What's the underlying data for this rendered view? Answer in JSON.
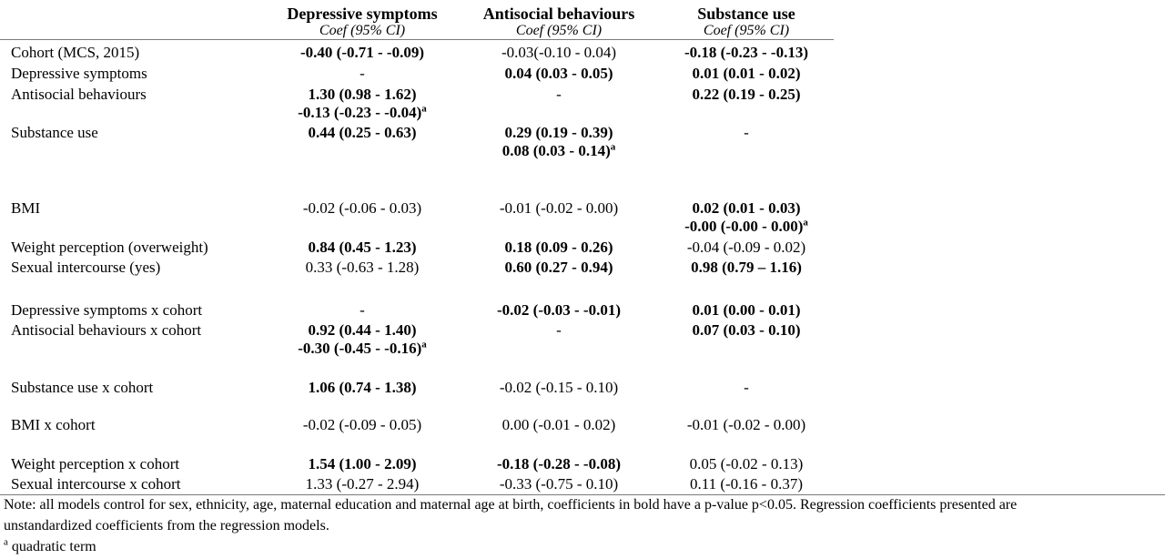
{
  "columns": [
    {
      "title": "Depressive symptoms",
      "subtitle": "Coef (95% CI)"
    },
    {
      "title": "Antisocial behaviours",
      "subtitle": "Coef (95% CI)"
    },
    {
      "title": "Substance use",
      "subtitle": "Coef (95% CI)"
    }
  ],
  "rows": [
    {
      "label": "Cohort (MCS, 2015)",
      "c1": "-0.40 (-0.71 - -0.09)",
      "c2": "-0.03(-0.10 - 0.04)",
      "c3": "-0.18 (-0.23 - -0.13)"
    },
    {
      "label": "Depressive symptoms",
      "c1": "-",
      "c2": "0.04 (0.03 - 0.05)",
      "c3": "0.01 (0.01 - 0.02)"
    },
    {
      "label": "Antisocial behaviours",
      "c1": "1.30 (0.98 - 1.62)",
      "c1_q": "-0.13 (-0.23 - -0.04)",
      "c2": "-",
      "c3": "0.22 (0.19 - 0.25)"
    },
    {
      "label": "Substance use",
      "c1": "0.44 (0.25 - 0.63)",
      "c2": "0.29 (0.19 - 0.39)",
      "c2_q": "0.08 (0.03 - 0.14)",
      "c3": "-"
    },
    {
      "label": "BMI",
      "c1": "-0.02 (-0.06 - 0.03)",
      "c2": "-0.01 (-0.02 - 0.00)",
      "c3": "0.02 (0.01 - 0.03)",
      "c3_q": "-0.00 (-0.00 - 0.00)"
    },
    {
      "label": "Weight perception (overweight)",
      "c1": "0.84 (0.45 - 1.23)",
      "c2": "0.18 (0.09 - 0.26)",
      "c3": "-0.04 (-0.09 - 0.02)"
    },
    {
      "label": "Sexual intercourse (yes)",
      "c1": "0.33 (-0.63 - 1.28)",
      "c2": "0.60 (0.27 - 0.94)",
      "c3": "0.98 (0.79 – 1.16)"
    },
    {
      "label": "Depressive symptoms x cohort",
      "c1": "-",
      "c2": "-0.02 (-0.03 - -0.01)",
      "c3": "0.01 (0.00 - 0.01)"
    },
    {
      "label": "Antisocial behaviours x cohort",
      "c1": "0.92 (0.44 - 1.40)",
      "c1_q": "-0.30 (-0.45 - -0.16)",
      "c2": "-",
      "c3": "0.07 (0.03 - 0.10)"
    },
    {
      "label": "Substance use x cohort",
      "c1": "1.06 (0.74 - 1.38)",
      "c2": "-0.02 (-0.15 - 0.10)",
      "c3": "-"
    },
    {
      "label": "BMI x cohort",
      "c1": "-0.02 (-0.09 - 0.05)",
      "c2": "0.00 (-0.01 - 0.02)",
      "c3": "-0.01 (-0.02 - 0.00)"
    },
    {
      "label": "Weight perception x cohort",
      "c1": "1.54 (1.00 - 2.09)",
      "c2": "-0.18 (-0.28 - -0.08)",
      "c3": "0.05 (-0.02 - 0.13)"
    },
    {
      "label": "Sexual intercourse x cohort",
      "c1": "1.33 (-0.27 - 2.94)",
      "c2": "-0.33 (-0.75 - 0.10)",
      "c3": "0.11 (-0.16 - 0.37)"
    }
  ],
  "superscript": "a",
  "notes": {
    "line1": "Note: all models control for sex, ethnicity, age, maternal education and maternal age at birth, coefficients in bold have a p-value p<0.05. Regression coefficients presented are",
    "line2": "unstandardized coefficients from the regression models.",
    "footnote_mark": "a",
    "footnote_text": " quadratic term"
  }
}
